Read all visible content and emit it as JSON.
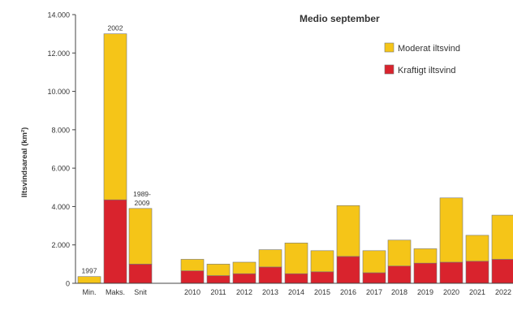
{
  "chart_data": {
    "type": "bar",
    "stacked": true,
    "title": "Medio september",
    "ylabel": "Iltsvindsareal (km²)",
    "ylim": [
      0,
      14000
    ],
    "yticks": [
      0,
      2000,
      4000,
      6000,
      8000,
      10000,
      12000,
      14000
    ],
    "ytick_labels": [
      "0",
      "2.000",
      "4.000",
      "6.000",
      "8.000",
      "10.000",
      "12.000",
      "14.000"
    ],
    "grid": false,
    "legend_position": "top-right",
    "colors": {
      "moderate": "#F5C518",
      "severe": "#D9232D",
      "axis": "#444444"
    },
    "categories": [
      "Min.",
      "Maks.",
      "Snit",
      "2010",
      "2011",
      "2012",
      "2013",
      "2014",
      "2015",
      "2016",
      "2017",
      "2018",
      "2019",
      "2020",
      "2021",
      "2022"
    ],
    "bar_annotations": [
      "1997",
      "2002",
      "1989-2009",
      "",
      "",
      "",
      "",
      "",
      "",
      "",
      "",
      "",
      "",
      "",
      "",
      ""
    ],
    "series": [
      {
        "name": "Kraftigt iltsvind",
        "color_key": "severe",
        "values": [
          0,
          4350,
          1000,
          650,
          400,
          500,
          850,
          500,
          600,
          1400,
          550,
          900,
          1050,
          1100,
          1150,
          1250
        ]
      },
      {
        "name": "Moderat iltsvind",
        "color_key": "moderate",
        "values": [
          350,
          8650,
          2900,
          600,
          600,
          600,
          900,
          1600,
          1100,
          2650,
          1150,
          1350,
          750,
          3350,
          1350,
          2300
        ]
      }
    ]
  }
}
